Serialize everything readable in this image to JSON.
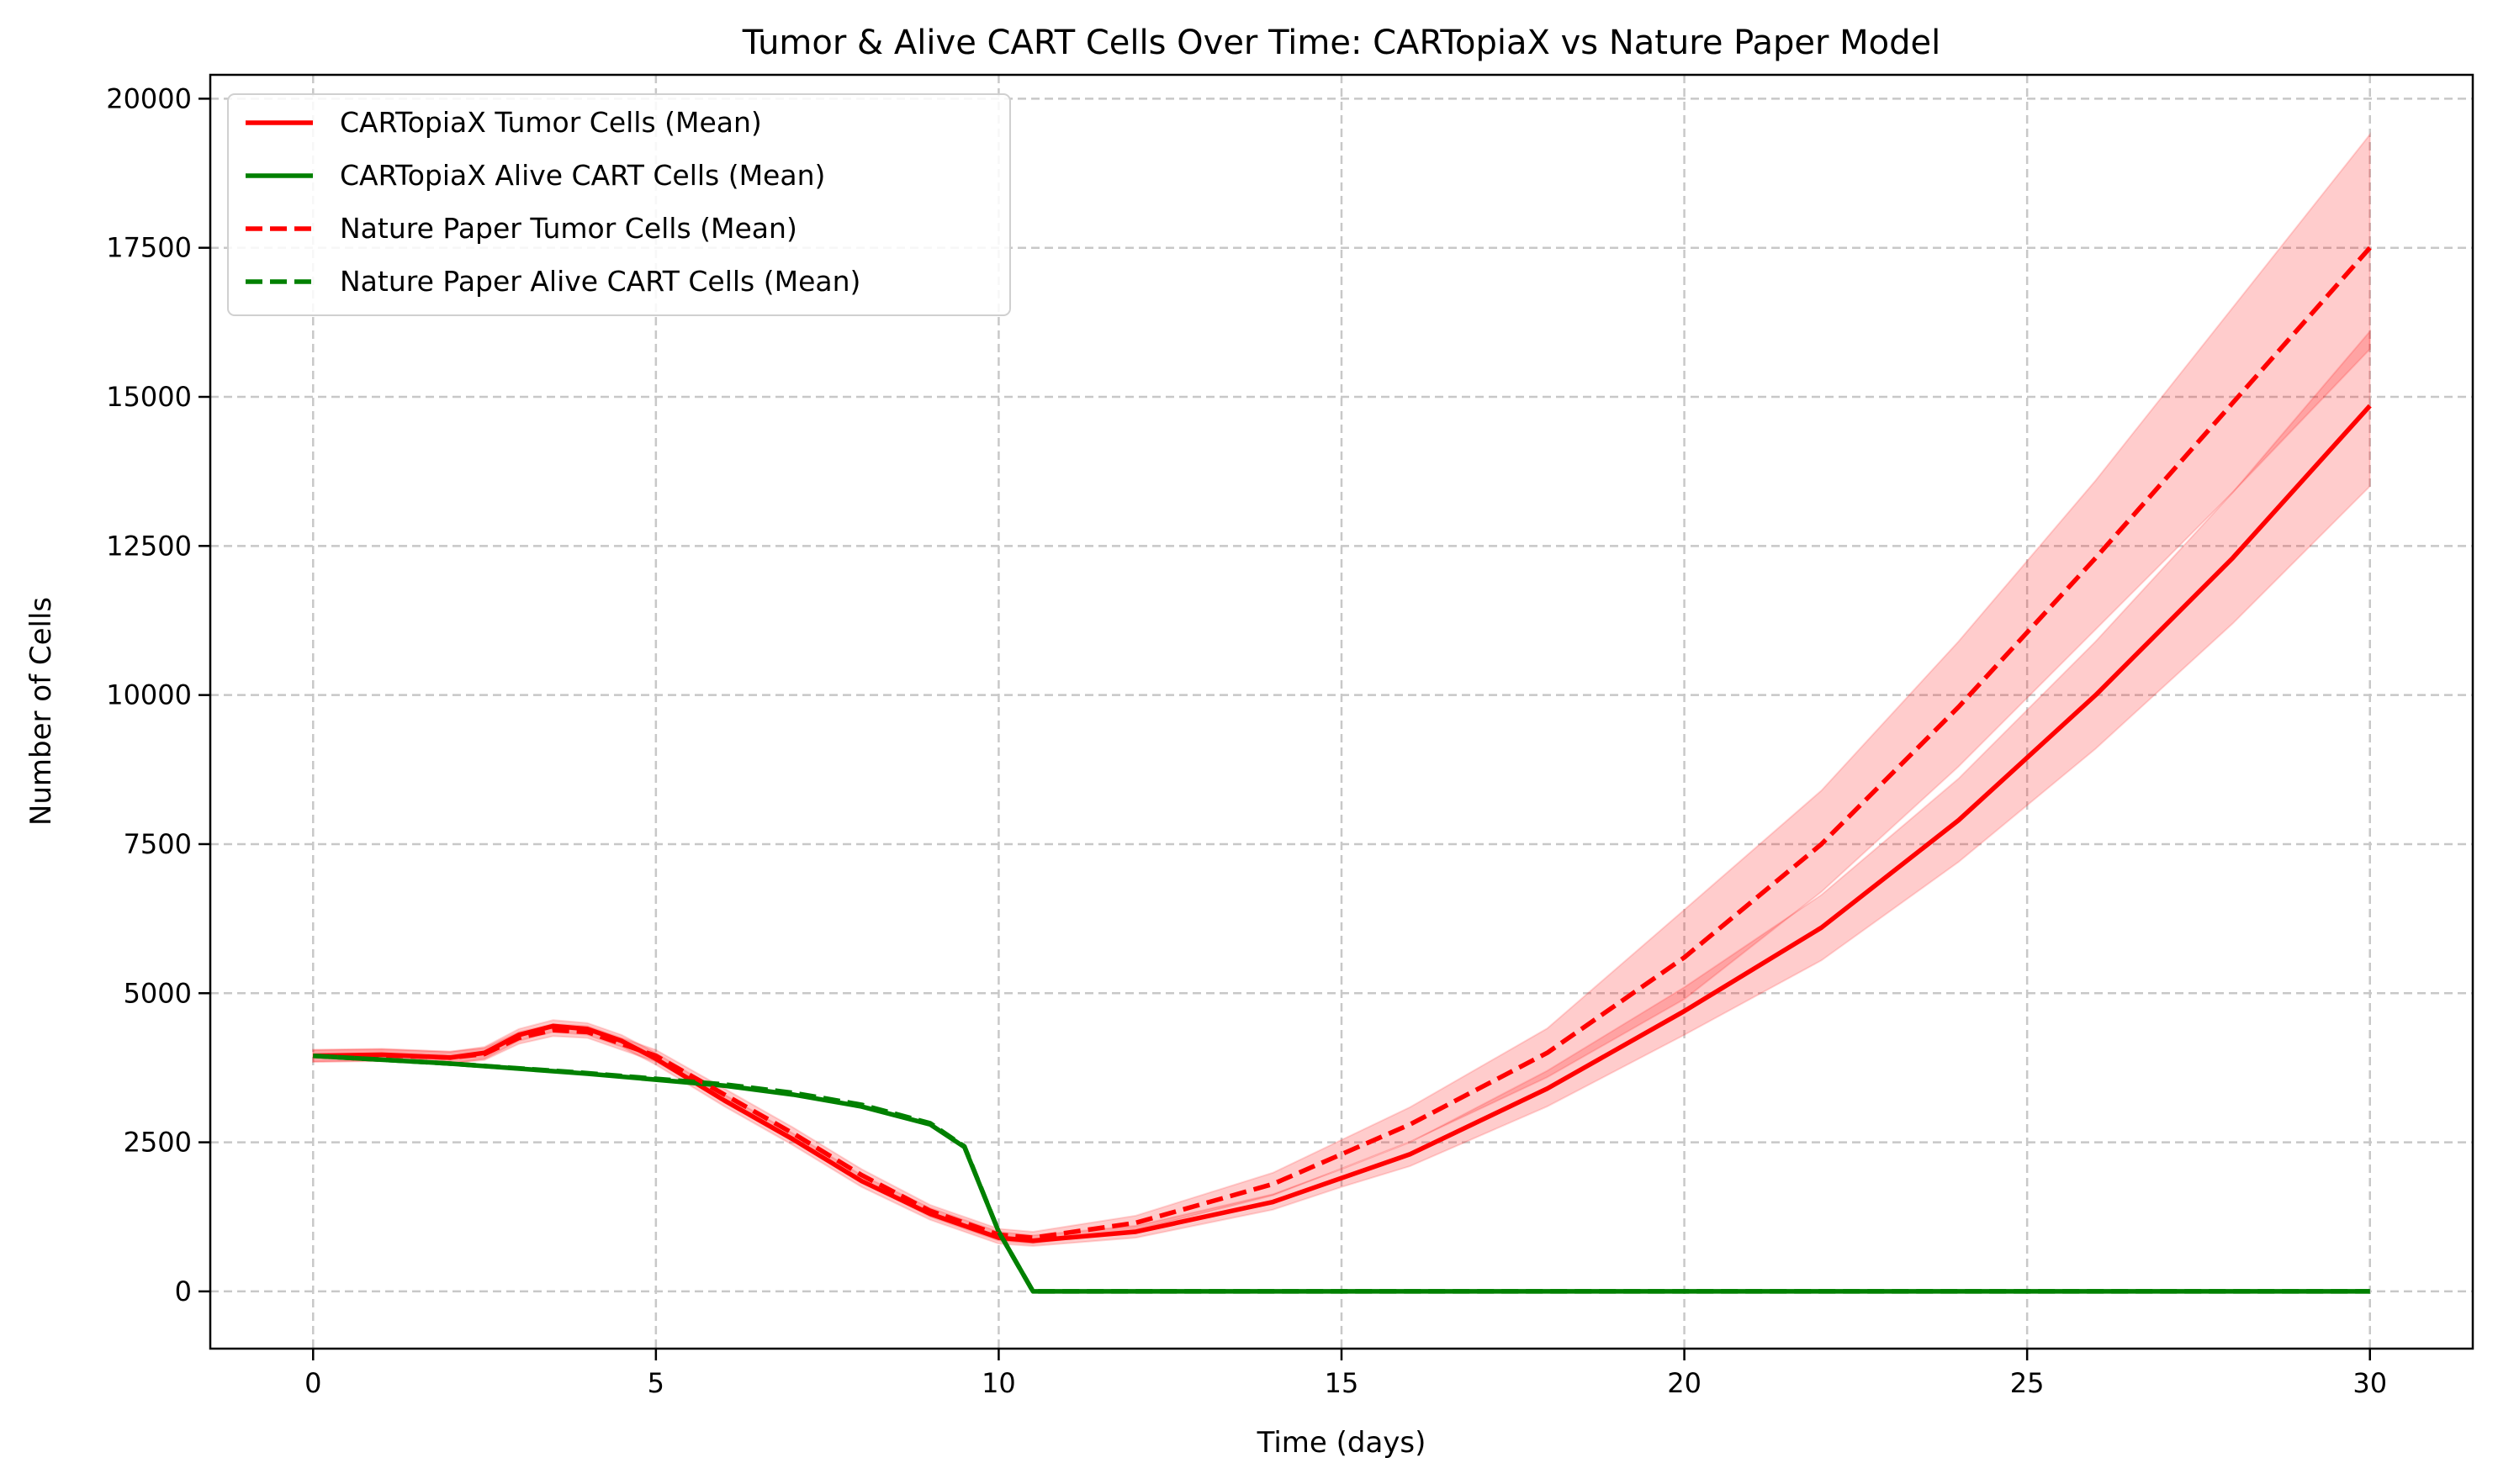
{
  "chart_data": {
    "type": "line",
    "title": "Tumor & Alive CART Cells Over Time: CARTopiaX vs Nature Paper Model",
    "xlabel": "Time (days)",
    "ylabel": "Number of Cells",
    "xlim": [
      -1.5,
      31.5
    ],
    "ylim": [
      -960,
      20400
    ],
    "xticks": [
      0,
      5,
      10,
      15,
      20,
      25,
      30
    ],
    "yticks": [
      0,
      2500,
      5000,
      7500,
      10000,
      12500,
      15000,
      17500,
      20000
    ],
    "grid": true,
    "legend_placement": "top-left",
    "series": [
      {
        "name": "CARTopiaX Tumor Cells (Mean)",
        "color": "#ff0000",
        "style": "solid",
        "x": [
          0,
          1,
          2,
          2.5,
          3,
          3.5,
          4,
          4.5,
          5,
          6,
          7,
          8,
          9,
          10,
          10.5,
          12,
          14,
          15,
          16,
          18,
          20,
          22,
          24,
          26,
          28,
          30
        ],
        "y": [
          3950,
          3970,
          3920,
          4000,
          4300,
          4450,
          4400,
          4200,
          3900,
          3200,
          2550,
          1850,
          1300,
          900,
          850,
          1000,
          1500,
          1900,
          2300,
          3400,
          4700,
          6100,
          7900,
          10000,
          12300,
          14850
        ],
        "band_lower": [
          3850,
          3870,
          3820,
          3900,
          4200,
          4350,
          4300,
          4100,
          3800,
          3100,
          2450,
          1750,
          1200,
          800,
          760,
          900,
          1370,
          1750,
          2100,
          3100,
          4300,
          5550,
          7200,
          9100,
          11200,
          13500
        ],
        "band_upper": [
          4050,
          4070,
          4020,
          4100,
          4400,
          4550,
          4500,
          4300,
          4000,
          3300,
          2650,
          1950,
          1400,
          1000,
          940,
          1100,
          1630,
          2050,
          2500,
          3700,
          5100,
          6650,
          8600,
          10900,
          13400,
          16100
        ]
      },
      {
        "name": "CARTopiaX Alive CART Cells (Mean)",
        "color": "#008000",
        "style": "solid",
        "x": [
          0,
          2,
          4,
          6,
          7,
          8,
          9,
          9.5,
          10,
          10.5,
          30
        ],
        "y": [
          3950,
          3820,
          3650,
          3450,
          3300,
          3100,
          2800,
          2420,
          1000,
          0,
          0
        ]
      },
      {
        "name": "Nature Paper Tumor Cells (Mean)",
        "color": "#ff0000",
        "style": "dashed",
        "x": [
          0,
          1,
          2,
          2.5,
          3,
          3.5,
          4,
          4.5,
          5,
          6,
          7,
          8,
          9,
          10,
          10.5,
          12,
          14,
          15,
          16,
          18,
          20,
          22,
          24,
          26,
          28,
          30
        ],
        "y": [
          3950,
          3960,
          3920,
          3980,
          4250,
          4380,
          4350,
          4150,
          3950,
          3300,
          2650,
          1950,
          1350,
          950,
          900,
          1150,
          1800,
          2300,
          2800,
          4000,
          5600,
          7500,
          9800,
          12300,
          14900,
          17500
        ],
        "band_lower": [
          3850,
          3860,
          3820,
          3880,
          4150,
          4280,
          4250,
          4050,
          3850,
          3200,
          2550,
          1850,
          1250,
          850,
          800,
          1030,
          1610,
          2060,
          2510,
          3590,
          4900,
          6700,
          8800,
          11100,
          13400,
          15800
        ],
        "band_upper": [
          4050,
          4060,
          4020,
          4080,
          4350,
          4480,
          4450,
          4250,
          4050,
          3400,
          2750,
          2050,
          1450,
          1050,
          1000,
          1270,
          1990,
          2540,
          3090,
          4410,
          6400,
          8400,
          10900,
          13600,
          16500,
          19400
        ]
      },
      {
        "name": "Nature Paper Alive CART Cells (Mean)",
        "color": "#008000",
        "style": "dashed",
        "x": [
          0,
          2,
          4,
          6,
          7,
          8,
          9,
          9.5,
          10,
          10.5,
          30
        ],
        "y": [
          3950,
          3820,
          3660,
          3470,
          3330,
          3130,
          2820,
          2430,
          1000,
          0,
          0
        ]
      }
    ]
  }
}
